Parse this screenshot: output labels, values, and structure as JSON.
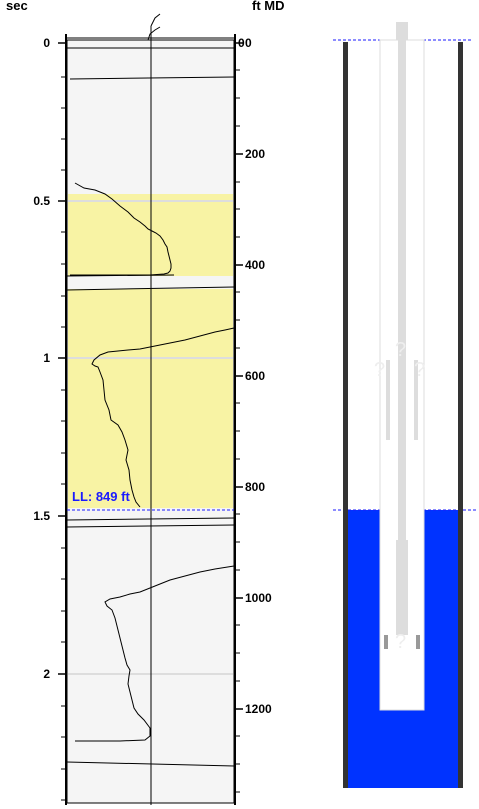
{
  "header": {
    "left_axis_unit": "sec",
    "right_axis_unit": "ft MD"
  },
  "time_axis": {
    "ticks": [
      {
        "value": 0,
        "label": "0"
      },
      {
        "value": 0.5,
        "label": "0.5"
      },
      {
        "value": 1,
        "label": "1"
      },
      {
        "value": 1.5,
        "label": "1.5"
      },
      {
        "value": 2,
        "label": "2"
      }
    ]
  },
  "depth_axis": {
    "ticks": [
      {
        "value": 0,
        "label": "0"
      },
      {
        "value": 200,
        "label": "200"
      },
      {
        "value": 400,
        "label": "400"
      },
      {
        "value": 600,
        "label": "600"
      },
      {
        "value": 800,
        "label": "800"
      },
      {
        "value": 1000,
        "label": "1000"
      },
      {
        "value": 1200,
        "label": "1200"
      }
    ]
  },
  "liquid_level": {
    "label": "LL: 849 ft",
    "depth_ft": 849
  },
  "well_diagram": {
    "unknown_marker": "?",
    "fluid_color": "#0033ff",
    "casing_color": "#333333"
  },
  "colors": {
    "highlight": "#f8f3a4",
    "trace_bg": "#f5f5f5",
    "marker_line": "#1a1aff"
  }
}
